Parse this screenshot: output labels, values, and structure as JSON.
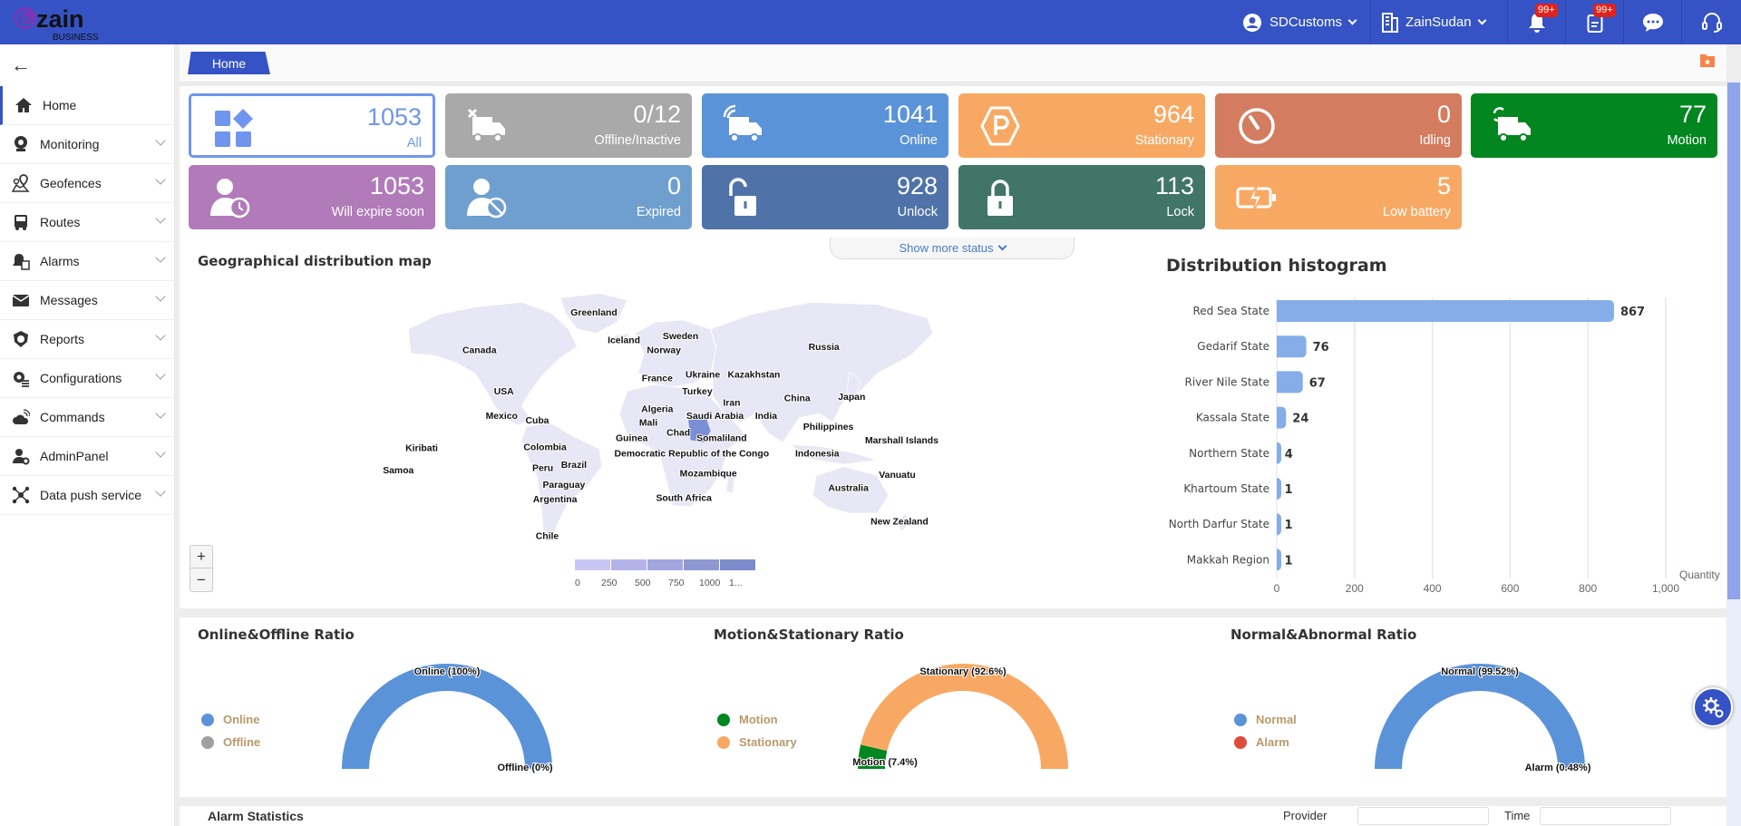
{
  "header": {
    "logo_text": "zain",
    "logo_sub": "BUSINESS",
    "user": "SDCustoms",
    "company": "ZainSudan",
    "notifications_badge": "99+",
    "tasks_badge": "99+"
  },
  "sidebar": {
    "items": [
      {
        "label": "Home",
        "icon": "home-icon",
        "active": true
      },
      {
        "label": "Monitoring",
        "icon": "webcam-icon"
      },
      {
        "label": "Geofences",
        "icon": "map-pin-icon"
      },
      {
        "label": "Routes",
        "icon": "bus-icon"
      },
      {
        "label": "Alarms",
        "icon": "bell-doc-icon"
      },
      {
        "label": "Messages",
        "icon": "envelope-icon"
      },
      {
        "label": "Reports",
        "icon": "shield-icon"
      },
      {
        "label": "Configurations",
        "icon": "gear-list-icon"
      },
      {
        "label": "Commands",
        "icon": "cloud-signal-icon"
      },
      {
        "label": "AdminPanel",
        "icon": "user-gear-icon"
      },
      {
        "label": "Data push service",
        "icon": "network-icon"
      }
    ]
  },
  "tabs": [
    {
      "label": "Home"
    }
  ],
  "status_cards": [
    {
      "value": "1053",
      "label": "All",
      "color": "#6f95ee"
    },
    {
      "value": "0/12",
      "label": "Offline/Inactive",
      "color": "#a9a9a9"
    },
    {
      "value": "1041",
      "label": "Online",
      "color": "#5b93d8"
    },
    {
      "value": "964",
      "label": "Stationary",
      "color": "#f7a964"
    },
    {
      "value": "0",
      "label": "Idling",
      "color": "#d47c5f"
    },
    {
      "value": "77",
      "label": "Motion",
      "color": "#02861f"
    },
    {
      "value": "1053",
      "label": "Will expire soon",
      "color": "#b17bb9"
    },
    {
      "value": "0",
      "label": "Expired",
      "color": "#6f9fcf"
    },
    {
      "value": "928",
      "label": "Unlock",
      "color": "#4f73a8"
    },
    {
      "value": "113",
      "label": "Lock",
      "color": "#407568"
    },
    {
      "value": "5",
      "label": "Low battery",
      "color": "#f7a964"
    }
  ],
  "show_more": "Show more status",
  "map": {
    "title": "Geographical distribution map",
    "countries": [
      "Greenland",
      "Iceland",
      "Sweden",
      "Norway",
      "Russia",
      "Canada",
      "Kazakhstan",
      "Ukraine",
      "France",
      "Turkey",
      "USA",
      "China",
      "Japan",
      "Iran",
      "Algeria",
      "Saudi Arabia",
      "India",
      "Mexico",
      "Cuba",
      "Mali",
      "Philippines",
      "Chad",
      "Somaliland",
      "Guinea",
      "Marshall Islands",
      "Kiribati",
      "Colombia",
      "Democratic Republic of the Congo",
      "Indonesia",
      "Brazil",
      "Peru",
      "Samoa",
      "Vanuatu",
      "Mozambique",
      "Paraguay",
      "Australia",
      "South Africa",
      "Argentina",
      "New Zealand",
      "Chile"
    ],
    "zoom_in": "+",
    "zoom_out": "−",
    "legend_labels": [
      "0",
      "250",
      "500",
      "750",
      "1000",
      "1..."
    ],
    "legend_colors": [
      "#c8c6f5",
      "#b4b3e9",
      "#a2a6de",
      "#8f98d3",
      "#7c8bc9"
    ]
  },
  "chart_data": [
    {
      "type": "bar",
      "orientation": "horizontal",
      "title": "Distribution histogram",
      "categories": [
        "Red Sea State",
        "Gedarif State",
        "River Nile State",
        "Kassala State",
        "Northern State",
        "Khartoum State",
        "North Darfur State",
        "Makkah Region"
      ],
      "values": [
        867,
        76,
        67,
        24,
        4,
        1,
        1,
        1
      ],
      "xlabel": "Quantity",
      "xlim": [
        0,
        1000
      ],
      "xticks": [
        "0",
        "200",
        "400",
        "600",
        "800",
        "1,000"
      ],
      "grid": true,
      "color": "#85aee9"
    },
    {
      "type": "pie",
      "variant": "half-donut",
      "title": "Online&Offline Ratio",
      "slices": [
        {
          "name": "Online",
          "value": 100,
          "label": "Online (100%)",
          "color": "#5b93d8"
        },
        {
          "name": "Offline",
          "value": 0,
          "label": "Offline (0%)",
          "color": "#a0a0a0"
        }
      ]
    },
    {
      "type": "pie",
      "variant": "half-donut",
      "title": "Motion&Stationary Ratio",
      "slices": [
        {
          "name": "Motion",
          "value": 7.4,
          "label": "Motion (7.4%)",
          "color": "#02861f"
        },
        {
          "name": "Stationary",
          "value": 92.6,
          "label": "Stationary (92.6%)",
          "color": "#f7a964"
        }
      ]
    },
    {
      "type": "pie",
      "variant": "half-donut",
      "title": "Normal&Abnormal Ratio",
      "slices": [
        {
          "name": "Normal",
          "value": 99.52,
          "label": "Normal (99.52%)",
          "color": "#5b93d8"
        },
        {
          "name": "Alarm",
          "value": 0.48,
          "label": "Alarm (0.48%)",
          "color": "#e04c3c"
        }
      ]
    }
  ],
  "bottom": {
    "title": "Alarm Statistics",
    "provider_label": "Provider",
    "time_label": "Time"
  }
}
